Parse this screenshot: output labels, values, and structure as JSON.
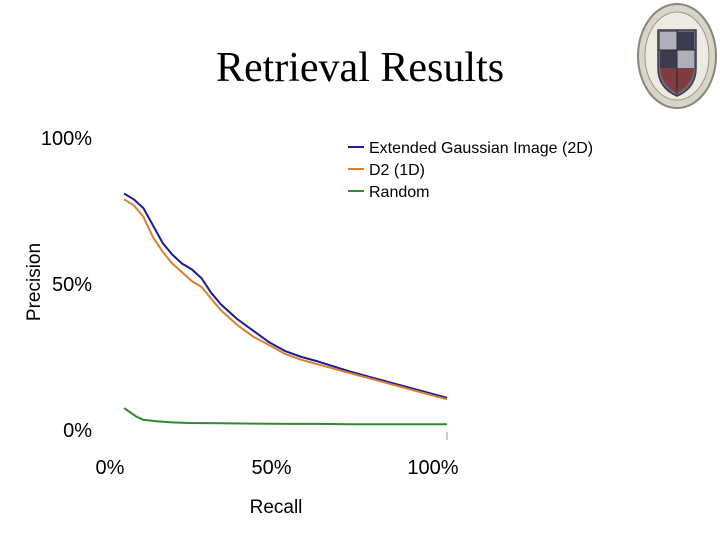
{
  "slide": {
    "title": "Retrieval Results"
  },
  "chart_data": {
    "type": "line",
    "title": "Retrieval Results",
    "xlabel": "Recall",
    "ylabel": "Precision",
    "xlim": [
      0,
      100
    ],
    "ylim": [
      0,
      100
    ],
    "x_ticks": [
      "0%",
      "50%",
      "100%"
    ],
    "y_ticks": [
      "0%",
      "50%",
      "100%"
    ],
    "grid": false,
    "legend_position": "top-right",
    "series": [
      {
        "name": "Extended Gaussian Image (2D)",
        "color": "#1a1a9c",
        "x": [
          0,
          3,
          6,
          9,
          12,
          15,
          18,
          21,
          24,
          27,
          30,
          35,
          40,
          45,
          50,
          55,
          60,
          70,
          80,
          90,
          100
        ],
        "y": [
          81,
          79,
          76,
          70,
          64,
          60,
          57,
          55,
          52,
          47,
          43,
          38,
          34,
          30,
          27,
          25,
          23.5,
          20,
          17,
          14,
          11
        ]
      },
      {
        "name": "D2 (1D)",
        "color": "#d9822b",
        "x": [
          0,
          3,
          6,
          9,
          12,
          15,
          18,
          21,
          24,
          27,
          30,
          35,
          40,
          45,
          50,
          55,
          60,
          70,
          80,
          90,
          100
        ],
        "y": [
          79,
          77,
          73,
          66,
          61,
          57,
          54,
          51,
          49,
          45,
          41,
          36,
          32,
          29,
          26,
          24,
          22.5,
          19.5,
          16.5,
          13.5,
          10.5
        ]
      },
      {
        "name": "Random",
        "color": "#2e8b2e",
        "x": [
          0,
          2,
          4,
          6,
          10,
          15,
          20,
          30,
          40,
          50,
          60,
          70,
          80,
          90,
          100
        ],
        "y": [
          7.5,
          6,
          4.5,
          3.5,
          3,
          2.6,
          2.4,
          2.3,
          2.2,
          2.1,
          2.1,
          2.0,
          2.0,
          2.0,
          2.0
        ]
      }
    ]
  },
  "logo": {
    "name": "university-seal"
  }
}
